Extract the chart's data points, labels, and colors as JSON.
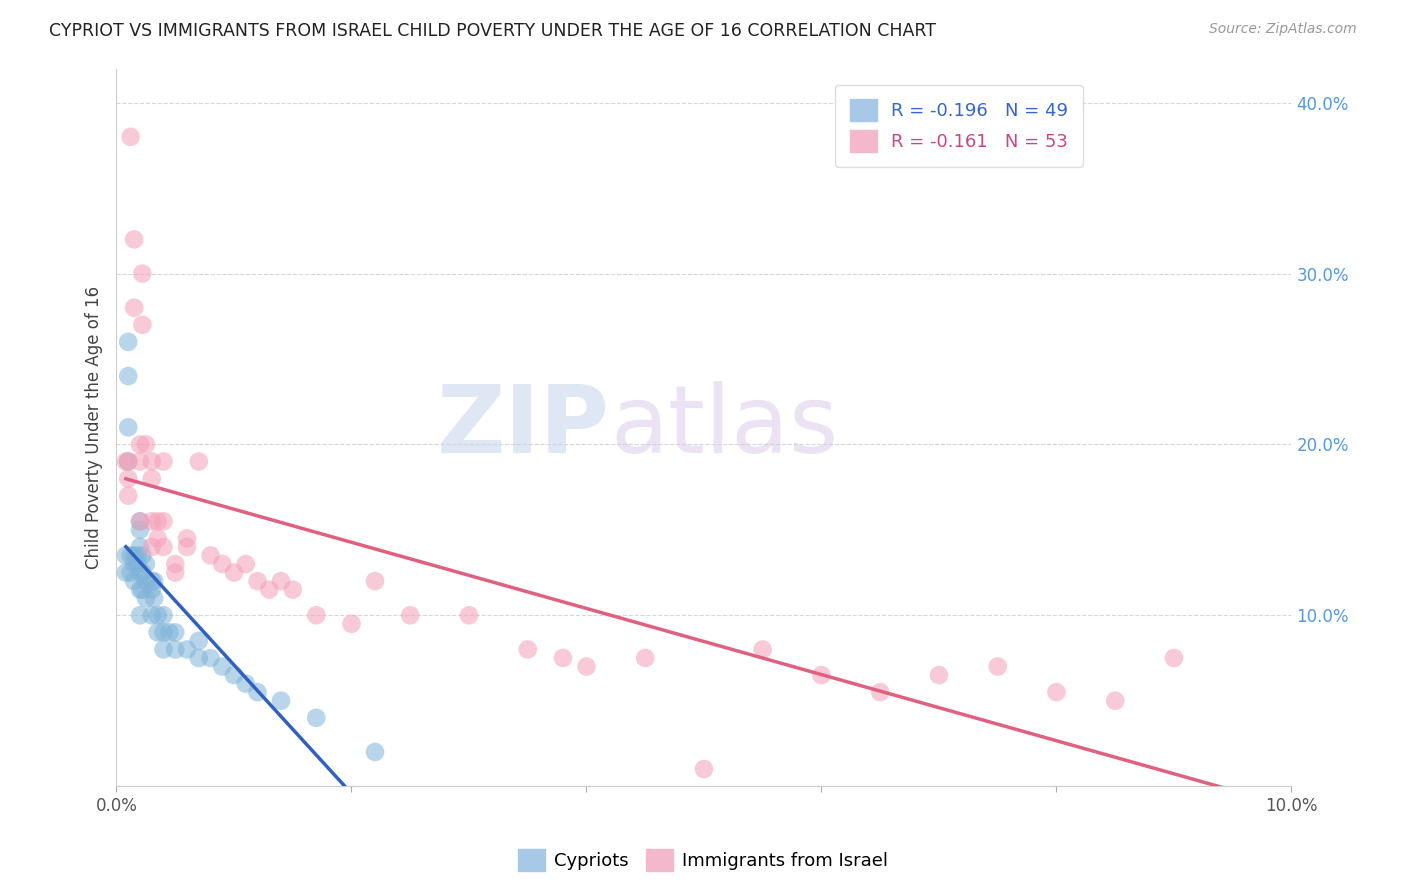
{
  "title": "CYPRIOT VS IMMIGRANTS FROM ISRAEL CHILD POVERTY UNDER THE AGE OF 16 CORRELATION CHART",
  "source": "Source: ZipAtlas.com",
  "ylabel": "Child Poverty Under the Age of 16",
  "xlim": [
    0,
    0.1
  ],
  "ylim": [
    0,
    0.42
  ],
  "xtick_positions": [
    0.0,
    0.02,
    0.04,
    0.06,
    0.08,
    0.1
  ],
  "xticklabels": [
    "0.0%",
    "",
    "",
    "",
    "",
    "10.0%"
  ],
  "ytick_positions": [
    0.0,
    0.1,
    0.2,
    0.3,
    0.4
  ],
  "yticklabels_right": [
    "",
    "10.0%",
    "20.0%",
    "30.0%",
    "40.0%"
  ],
  "watermark_zip": "ZIP",
  "watermark_atlas": "atlas",
  "cypriot_color": "#7fb3d9",
  "israel_color": "#f4a0b8",
  "blue_line_color": "#3060c0",
  "pink_line_color": "#e06080",
  "cypriot_x": [
    0.0008,
    0.0008,
    0.001,
    0.001,
    0.001,
    0.001,
    0.0012,
    0.0012,
    0.0015,
    0.0015,
    0.0015,
    0.0018,
    0.0018,
    0.002,
    0.002,
    0.002,
    0.002,
    0.002,
    0.002,
    0.0022,
    0.0022,
    0.0022,
    0.0025,
    0.0025,
    0.0025,
    0.003,
    0.003,
    0.003,
    0.0032,
    0.0032,
    0.0035,
    0.0035,
    0.004,
    0.004,
    0.004,
    0.0045,
    0.005,
    0.005,
    0.006,
    0.007,
    0.007,
    0.008,
    0.009,
    0.01,
    0.011,
    0.012,
    0.014,
    0.017,
    0.022
  ],
  "cypriot_y": [
    0.135,
    0.125,
    0.26,
    0.24,
    0.21,
    0.19,
    0.135,
    0.125,
    0.135,
    0.13,
    0.12,
    0.135,
    0.13,
    0.155,
    0.15,
    0.14,
    0.125,
    0.115,
    0.1,
    0.135,
    0.125,
    0.115,
    0.13,
    0.12,
    0.11,
    0.12,
    0.115,
    0.1,
    0.12,
    0.11,
    0.1,
    0.09,
    0.1,
    0.09,
    0.08,
    0.09,
    0.09,
    0.08,
    0.08,
    0.085,
    0.075,
    0.075,
    0.07,
    0.065,
    0.06,
    0.055,
    0.05,
    0.04,
    0.02
  ],
  "israel_x": [
    0.0008,
    0.001,
    0.001,
    0.001,
    0.0012,
    0.0015,
    0.0015,
    0.002,
    0.002,
    0.002,
    0.0022,
    0.0022,
    0.0025,
    0.003,
    0.003,
    0.003,
    0.003,
    0.0035,
    0.0035,
    0.004,
    0.004,
    0.004,
    0.005,
    0.005,
    0.006,
    0.006,
    0.007,
    0.008,
    0.009,
    0.01,
    0.011,
    0.012,
    0.013,
    0.014,
    0.015,
    0.017,
    0.02,
    0.022,
    0.025,
    0.03,
    0.035,
    0.038,
    0.04,
    0.045,
    0.05,
    0.055,
    0.06,
    0.065,
    0.07,
    0.075,
    0.08,
    0.085,
    0.09
  ],
  "israel_y": [
    0.19,
    0.19,
    0.18,
    0.17,
    0.38,
    0.32,
    0.28,
    0.2,
    0.19,
    0.155,
    0.3,
    0.27,
    0.2,
    0.19,
    0.18,
    0.155,
    0.14,
    0.155,
    0.145,
    0.19,
    0.155,
    0.14,
    0.13,
    0.125,
    0.145,
    0.14,
    0.19,
    0.135,
    0.13,
    0.125,
    0.13,
    0.12,
    0.115,
    0.12,
    0.115,
    0.1,
    0.095,
    0.12,
    0.1,
    0.1,
    0.08,
    0.075,
    0.07,
    0.075,
    0.01,
    0.08,
    0.065,
    0.055,
    0.065,
    0.07,
    0.055,
    0.05,
    0.075
  ]
}
